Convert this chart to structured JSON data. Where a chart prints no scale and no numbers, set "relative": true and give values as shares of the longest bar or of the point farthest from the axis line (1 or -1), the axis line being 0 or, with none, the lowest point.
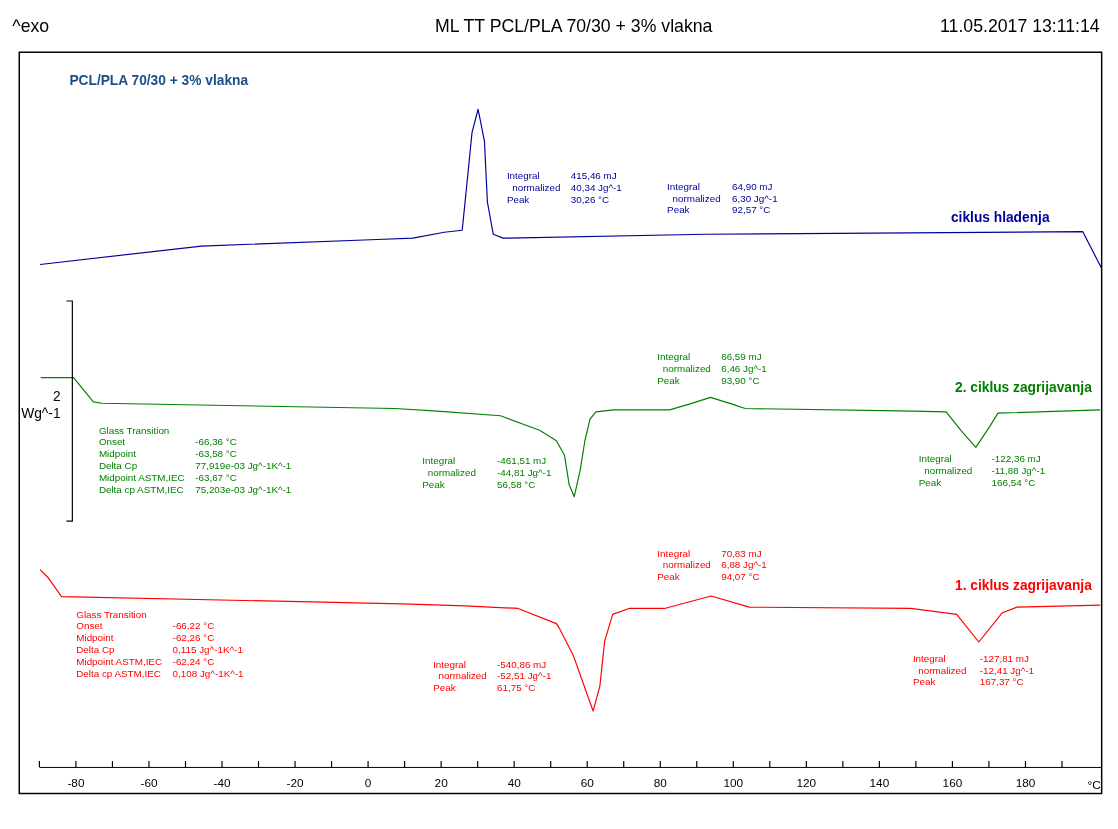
{
  "chart_data": {
    "type": "line",
    "title": "ML TT PCL/PLA 70/30 + 3% vlakna",
    "subtitle": "PCL/PLA 70/30 + 3% vlakna",
    "xlabel": "°C",
    "relative": true,
    "annotations": [
      "^exo",
      "11.05.2017 13:11:14",
      "Integral\t415,46 mJ\n  normalized\t40,34 Jg^-1\nPeak\t30,26 °C",
      "Integral\t64,90 mJ\n  normalized\t6,30 Jg^-1\nPeak\t92,57 °C",
      "Glass Transition\nOnset\t-66,36 °C\nMidpoint\t-63,58 °C\nDelta Cp\t77,919e-03 Jg^-1K^-1\nMidpoint ASTM,IEC\t-63,67 °C\nDelta cp ASTM,IEC\t75,203e-03 Jg^-1K^-1",
      "Integral\t-461,51 mJ\n  normalized\t-44,81 Jg^-1\nPeak\t56,58 °C",
      "Integral\t66,59 mJ\n  normalized\t6,46 Jg^-1\nPeak\t93,90 °C",
      "Integral\t-122,36 mJ\n  normalized\t-11,88 Jg^-1\nPeak\t166,54 °C",
      "Glass Transition\nOnset\t-66,22 °C\nMidpoint\t-62,26 °C\nDelta Cp\t0,115 Jg^-1K^-1\nMidpoint ASTM,IEC\t-62,24 °C\nDelta cp ASTM,IEC\t0,108 Jg^-1K^-1",
      "Integral\t-540,86 mJ\n  normalized\t-52,51 Jg^-1\nPeak\t61,75 °C",
      "Integral\t70,83 mJ\n  normalized\t6,88 Jg^-1\nPeak\t94,07 °C",
      "Integral\t-127,81 mJ\n  normalized\t-12,41 Jg^-1\nPeak\t167,37 °C",
      "2\nWg^-1"
    ],
    "xlim": [
      -90,
      201
    ],
    "xticks": [
      {
        "value": -90,
        "label": null
      },
      -80,
      {
        "value": -70,
        "label": null
      },
      -60,
      {
        "value": -50,
        "label": null
      },
      -40,
      {
        "value": -30,
        "label": null
      },
      -20,
      {
        "value": -10,
        "label": null
      },
      0,
      {
        "value": 10,
        "label": null
      },
      20,
      {
        "value": 30,
        "label": null
      },
      40,
      {
        "value": 50,
        "label": null
      },
      60,
      {
        "value": 70,
        "label": null
      },
      80,
      {
        "value": 90,
        "label": null
      },
      100,
      {
        "value": 110,
        "label": null
      },
      120,
      {
        "value": 130,
        "label": null
      },
      140,
      {
        "value": 150,
        "label": null
      },
      160,
      {
        "value": 170,
        "label": null
      },
      180,
      {
        "value": 190,
        "label": null
      }
    ],
    "grid": false,
    "legend": false,
    "series": [
      {
        "name": "ciklus hladenja",
        "color": "#00009c",
        "x": [
          -89.7,
          -45.5,
          2.7,
          12.4,
          21.0,
          25.9,
          27.2,
          28.6,
          30.26,
          32.0,
          32.8,
          34.4,
          37.1,
          92.4,
          148.7,
          195.8,
          201
        ],
        "values": [
          0.764,
          0.792,
          0.802,
          0.804,
          0.813,
          0.816,
          0.887,
          0.965,
          1.0,
          0.951,
          0.859,
          0.81,
          0.804,
          0.81,
          0.812,
          0.814,
          0.758
        ]
      },
      {
        "name": "2. ciklus zagrijavanja",
        "color": "#008000",
        "x": [
          -89.5,
          -80.5,
          -75.1,
          -72.7,
          7.5,
          19.1,
          36.4,
          47.1,
          51.7,
          53.9,
          55.2,
          56.58,
          58.2,
          59.5,
          60.9,
          62.5,
          67.3,
          82.7,
          88.3,
          93.9,
          99.6,
          103.4,
          149.5,
          158.4,
          162.4,
          166.54,
          170.5,
          172.6,
          200.6
        ],
        "values": [
          0.592,
          0.592,
          0.555,
          0.553,
          0.545,
          0.541,
          0.534,
          0.512,
          0.496,
          0.474,
          0.429,
          0.411,
          0.451,
          0.496,
          0.529,
          0.54,
          0.543,
          0.543,
          0.552,
          0.562,
          0.552,
          0.545,
          0.541,
          0.54,
          0.512,
          0.486,
          0.519,
          0.538,
          0.543
        ]
      },
      {
        "name": "1. ciklus zagrijavanja",
        "color": "#ff0000",
        "x": [
          -89.7,
          -87.5,
          -83.8,
          9.4,
          26.7,
          41.2,
          51.7,
          52.5,
          56.3,
          59.3,
          61.75,
          63.6,
          64.9,
          67.1,
          71.6,
          81.3,
          94.07,
          104.5,
          148.7,
          161.3,
          167.37,
          173.7,
          177.8,
          200.6
        ],
        "values": [
          0.3,
          0.288,
          0.259,
          0.248,
          0.245,
          0.241,
          0.218,
          0.211,
          0.17,
          0.123,
          0.085,
          0.123,
          0.191,
          0.232,
          0.241,
          0.241,
          0.26,
          0.243,
          0.241,
          0.232,
          0.19,
          0.234,
          0.243,
          0.246
        ]
      }
    ]
  }
}
